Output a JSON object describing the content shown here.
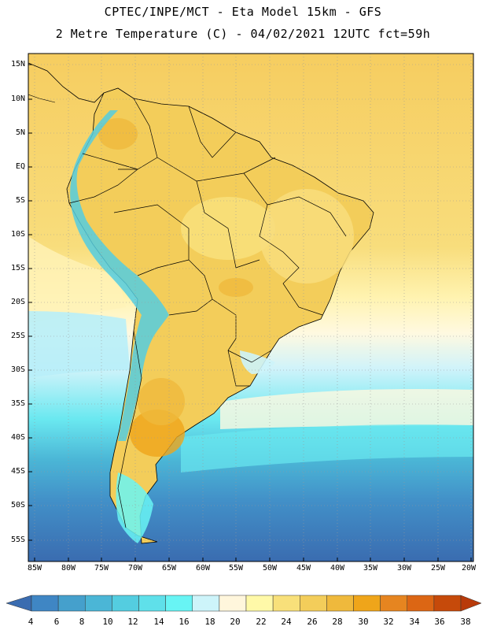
{
  "title_line1": "CPTEC/INPE/MCT -  Eta Model 15km - GFS",
  "title_line2": "2 Metre Temperature (C) - 04/02/2021 12UTC fct=59h",
  "lat_labels": [
    "15N",
    "10N",
    "5N",
    "EQ",
    "5S",
    "10S",
    "15S",
    "20S",
    "25S",
    "30S",
    "35S",
    "40S",
    "45S",
    "50S",
    "55S"
  ],
  "lon_labels": [
    "85W",
    "80W",
    "75W",
    "70W",
    "65W",
    "60W",
    "55W",
    "50W",
    "45W",
    "40W",
    "35W",
    "30W",
    "25W",
    "20W"
  ],
  "colorbar": {
    "labels": [
      "4",
      "6",
      "8",
      "10",
      "12",
      "14",
      "16",
      "18",
      "20",
      "22",
      "24",
      "26",
      "28",
      "30",
      "32",
      "34",
      "36",
      "38"
    ],
    "colors": [
      "#3a6cb0",
      "#3f86c4",
      "#45a0cc",
      "#4bb6d6",
      "#54cde0",
      "#5fe0ea",
      "#68f4f4",
      "#cdf4fa",
      "#fff6dc",
      "#fff9a8",
      "#f8e07a",
      "#f3cd5a",
      "#efb93c",
      "#efa51a",
      "#e68520",
      "#dc6614",
      "#c64a0a",
      "#b83a0a"
    ]
  },
  "legend": {
    "ocean_south": "#3a6cb0",
    "land_warm": "#f3cd5a",
    "andes_cold": "#54cde0"
  }
}
